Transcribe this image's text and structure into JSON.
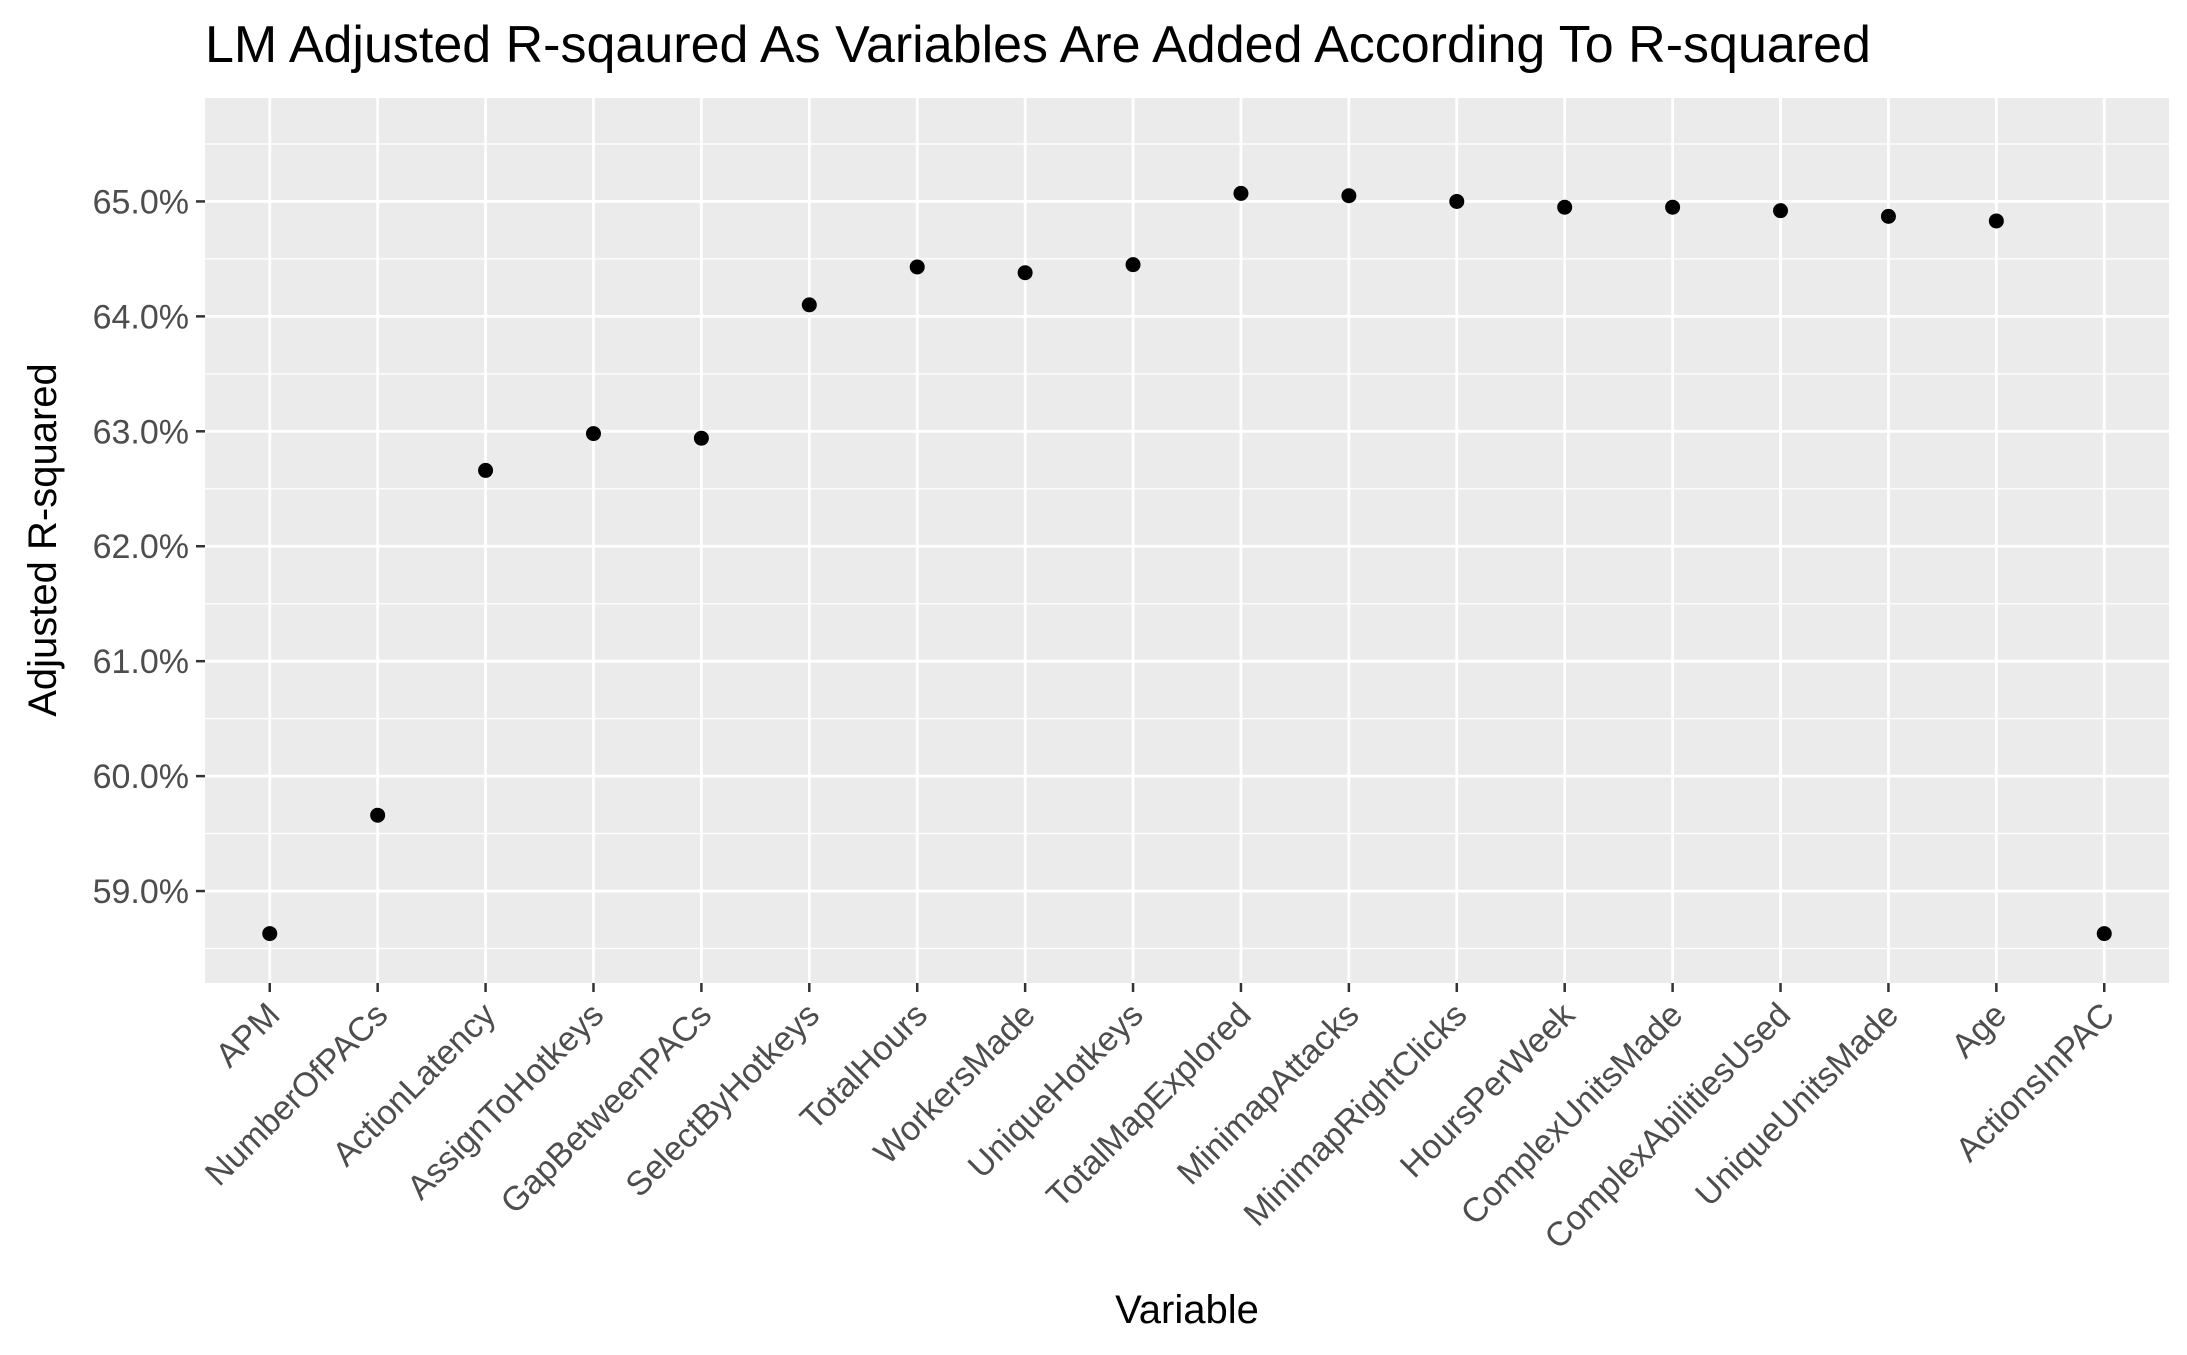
{
  "chart_data": {
    "type": "scatter",
    "title": "LM Adjusted R-sqaured As Variables Are Added According To R-squared",
    "xlabel": "Variable",
    "ylabel": "Adjusted R-squared",
    "categories": [
      "APM",
      "NumberOfPACs",
      "ActionLatency",
      "AssignToHotkeys",
      "GapBetweenPACs",
      "SelectByHotkeys",
      "TotalHours",
      "WorkersMade",
      "UniqueHotkeys",
      "TotalMapExplored",
      "MinimapAttacks",
      "MinimapRightClicks",
      "HoursPerWeek",
      "ComplexUnitsMade",
      "ComplexAbilitiesUsed",
      "UniqueUnitsMade",
      "Age",
      "ActionsInPAC"
    ],
    "values": [
      58.63,
      59.66,
      62.66,
      62.98,
      62.94,
      64.1,
      64.43,
      64.38,
      64.45,
      65.07,
      65.05,
      65.0,
      64.95,
      64.95,
      64.92,
      64.87,
      64.83,
      58.63
    ],
    "y_ticks": [
      59,
      60,
      61,
      62,
      63,
      64,
      65
    ],
    "y_tick_labels": [
      "59.0%",
      "60.0%",
      "61.0%",
      "62.0%",
      "63.0%",
      "64.0%",
      "65.0%"
    ],
    "ylim": [
      58.2,
      65.9
    ],
    "grid": true,
    "point_color": "#000000",
    "panel_background": "#EBEBEB",
    "gridline_color": "#FFFFFF",
    "tick_label_color": "#4D4D4D"
  }
}
